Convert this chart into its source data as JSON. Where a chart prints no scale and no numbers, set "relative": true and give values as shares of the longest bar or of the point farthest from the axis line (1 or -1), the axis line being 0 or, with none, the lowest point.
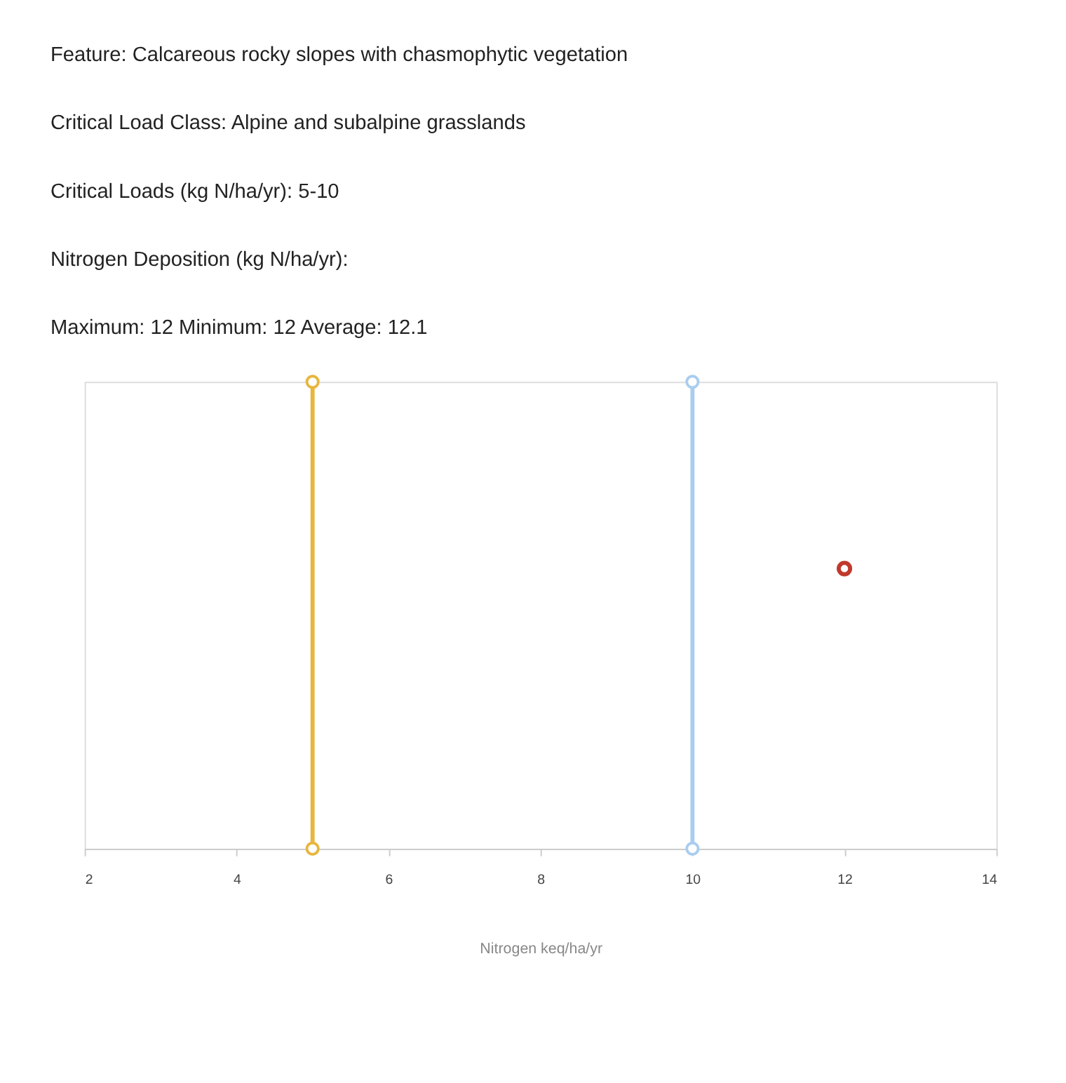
{
  "chart_data": {
    "type": "scatter",
    "annotations": [
      "Feature: Calcareous rocky slopes with chasmophytic vegetation",
      "Critical Load Class: Alpine and subalpine grasslands",
      "Critical Loads (kg N/ha/yr): 5-10",
      "Nitrogen Deposition (kg N/ha/yr):",
      "Maximum: 12 Minimum: 12 Average: 12.1"
    ],
    "xlabel": "Nitrogen keq/ha/yr",
    "xlim": [
      2,
      14
    ],
    "xticks": [
      2,
      4,
      6,
      8,
      10,
      12,
      14
    ],
    "relative": true,
    "grid": false,
    "legend": false,
    "marker": "circle",
    "series": [
      {
        "type": "line",
        "x": [
          5,
          5
        ],
        "values": [
          0,
          1
        ],
        "color": "#e8b63e"
      },
      {
        "type": "line",
        "x": [
          10,
          10
        ],
        "values": [
          0,
          1
        ],
        "color": "#a9cdee"
      },
      {
        "type": "scatter",
        "x": [
          12
        ],
        "values": [
          0.6
        ],
        "color": "#c0392b"
      }
    ]
  }
}
